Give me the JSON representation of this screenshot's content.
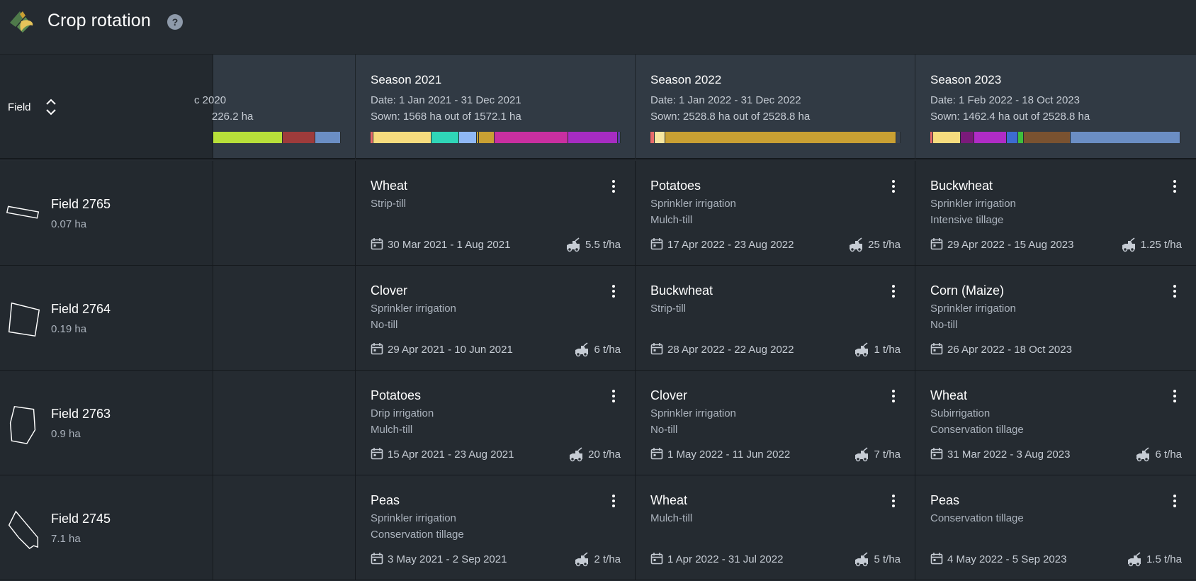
{
  "app": {
    "title": "Crop rotation",
    "help_label": "?"
  },
  "grid": {
    "field_header_label": "Field",
    "seasons": [
      {
        "title": "",
        "date": "c 2020",
        "sown": "226.2 ha",
        "bar": [
          {
            "color": "#b8e03a",
            "frac": 0.55
          },
          {
            "color": "#9e3b3b",
            "frac": 0.25
          },
          {
            "color": "#6b8ec4",
            "frac": 0.2
          }
        ]
      },
      {
        "title": "Season 2021",
        "date": "Date: 1 Jan 2021 - 31 Dec 2021",
        "sown": "Sown: 1568 ha out of 1572.1 ha",
        "bar": [
          {
            "color": "#e86a6a",
            "frac": 0.01
          },
          {
            "color": "#f7dc7e",
            "frac": 0.235
          },
          {
            "color": "#2fd6b8",
            "frac": 0.11
          },
          {
            "color": "#8fb8f5",
            "frac": 0.07
          },
          {
            "color": "#c4a43a",
            "frac": 0.005
          },
          {
            "color": "#c9a033",
            "frac": 0.06
          },
          {
            "color": "#c92fa0",
            "frac": 0.3
          },
          {
            "color": "#a62cc2",
            "frac": 0.2
          },
          {
            "color": "#5a3aa6",
            "frac": 0.01
          }
        ]
      },
      {
        "title": "Season 2022",
        "date": "Date: 1 Jan 2022 - 31 Dec 2022",
        "sown": "Sown: 2528.8 ha out of 2528.8 ha",
        "bar": [
          {
            "color": "#e86a6a",
            "frac": 0.015
          },
          {
            "color": "#f7e6a0",
            "frac": 0.04
          },
          {
            "color": "#c9a033",
            "frac": 0.93
          },
          {
            "color": "#3b4450",
            "frac": 0.015
          }
        ]
      },
      {
        "title": "Season 2023",
        "date": "Date: 1 Feb 2022 - 18 Oct 2023",
        "sown": "Sown: 1462.4 ha out of 2528.8 ha",
        "bar": [
          {
            "color": "#e86a6a",
            "frac": 0.01
          },
          {
            "color": "#f7dc7e",
            "frac": 0.11
          },
          {
            "color": "#7a1a7a",
            "frac": 0.05
          },
          {
            "color": "#b02cc6",
            "frac": 0.13
          },
          {
            "color": "#3d6bd1",
            "frac": 0.045
          },
          {
            "color": "#3dbf3d",
            "frac": 0.02
          },
          {
            "color": "#7a5230",
            "frac": 0.19
          },
          {
            "color": "#6b8ec4",
            "frac": 0.445
          }
        ]
      }
    ],
    "rows": [
      {
        "field": "Field 2765",
        "area": "0.07 ha",
        "shape": "strip",
        "cells": [
          {
            "crop": "Wheat",
            "line1": "Strip-till",
            "line2": "",
            "dates": "30 Mar 2021 - 1 Aug 2021",
            "yield": "5.5 t/ha"
          },
          {
            "crop": "Potatoes",
            "line1": "Sprinkler irrigation",
            "line2": "Mulch-till",
            "dates": "17 Apr 2022 - 23 Aug 2022",
            "yield": "25 t/ha"
          },
          {
            "crop": "Buckwheat",
            "line1": "Sprinkler irrigation",
            "line2": "Intensive tillage",
            "dates": "29 Apr 2022 - 15 Aug 2023",
            "yield": "1.25 t/ha"
          }
        ]
      },
      {
        "field": "Field 2764",
        "area": "0.19 ha",
        "shape": "square",
        "cells": [
          {
            "crop": "Clover",
            "line1": "Sprinkler irrigation",
            "line2": "No-till",
            "dates": "29 Apr 2021 - 10 Jun 2021",
            "yield": "6 t/ha"
          },
          {
            "crop": "Buckwheat",
            "line1": "Strip-till",
            "line2": "",
            "dates": "28 Apr 2022 - 22 Aug 2022",
            "yield": "1 t/ha"
          },
          {
            "crop": "Corn (Maize)",
            "line1": "Sprinkler irrigation",
            "line2": "No-till",
            "dates": "26 Apr 2022 - 18 Oct 2023",
            "yield": ""
          }
        ]
      },
      {
        "field": "Field 2763",
        "area": "0.9 ha",
        "shape": "tall",
        "cells": [
          {
            "crop": "Potatoes",
            "line1": "Drip irrigation",
            "line2": "Mulch-till",
            "dates": "15 Apr 2021 - 23 Aug 2021",
            "yield": "20 t/ha"
          },
          {
            "crop": "Clover",
            "line1": "Sprinkler irrigation",
            "line2": "No-till",
            "dates": "1 May 2022 - 11 Jun 2022",
            "yield": "7 t/ha"
          },
          {
            "crop": "Wheat",
            "line1": "Subirrigation",
            "line2": "Conservation tillage",
            "dates": "31 Mar 2022 - 3 Aug 2023",
            "yield": "6 t/ha"
          }
        ]
      },
      {
        "field": "Field 2745",
        "area": "7.1 ha",
        "shape": "angled",
        "cells": [
          {
            "crop": "Peas",
            "line1": "Sprinkler irrigation",
            "line2": "Conservation tillage",
            "dates": "3 May 2021 - 2 Sep 2021",
            "yield": "2 t/ha"
          },
          {
            "crop": "Wheat",
            "line1": "Mulch-till",
            "line2": "",
            "dates": "1 Apr 2022 - 31 Jul 2022",
            "yield": "5 t/ha"
          },
          {
            "crop": "Peas",
            "line1": "Conservation tillage",
            "line2": "",
            "dates": "4 May 2022 - 5 Sep 2023",
            "yield": "1.5 t/ha"
          }
        ]
      }
    ]
  }
}
